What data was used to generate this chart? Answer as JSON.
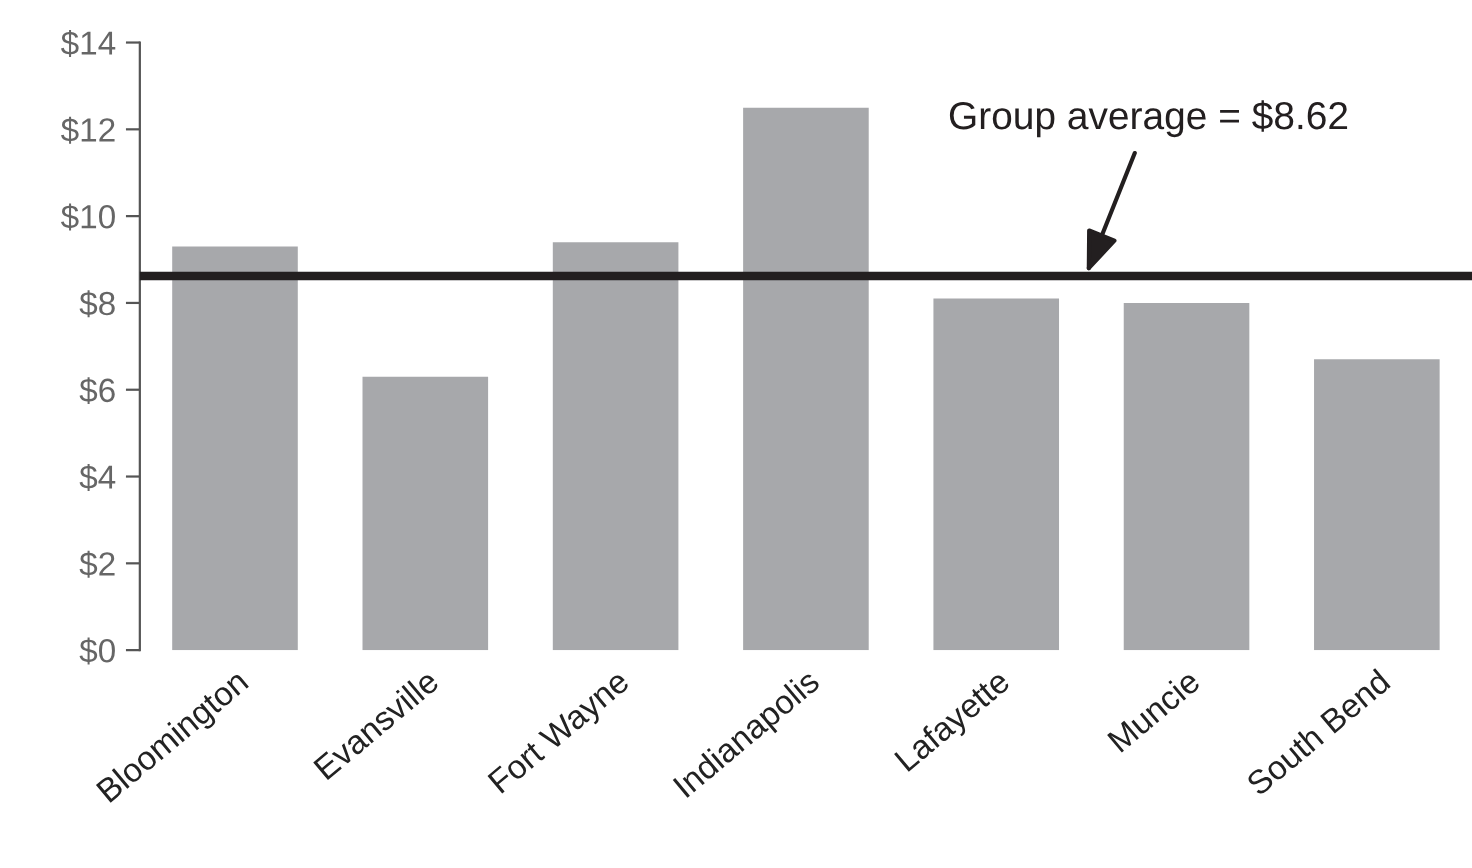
{
  "chart_data": {
    "type": "bar",
    "categories": [
      "Bloomington",
      "Evansville",
      "Fort Wayne",
      "Indianapolis",
      "Lafayette",
      "Muncie",
      "South Bend"
    ],
    "values": [
      9.3,
      6.3,
      9.4,
      12.5,
      8.1,
      8.0,
      6.7
    ],
    "color": "#a7a8ab",
    "ylim": [
      0,
      14
    ],
    "yticks": [
      {
        "value": 0,
        "label": "$0"
      },
      {
        "value": 2,
        "label": "$2"
      },
      {
        "value": 4,
        "label": "$4"
      },
      {
        "value": 6,
        "label": "$6"
      },
      {
        "value": 8,
        "label": "$8"
      },
      {
        "value": 10,
        "label": "$10"
      },
      {
        "value": 12,
        "label": "$12"
      },
      {
        "value": 14,
        "label": "$14"
      }
    ],
    "ref_lines": [
      {
        "axis": "y",
        "value": 8.62,
        "label": "Group average = $8.62",
        "color": "#231f20"
      }
    ],
    "grid": false,
    "legend": false
  }
}
